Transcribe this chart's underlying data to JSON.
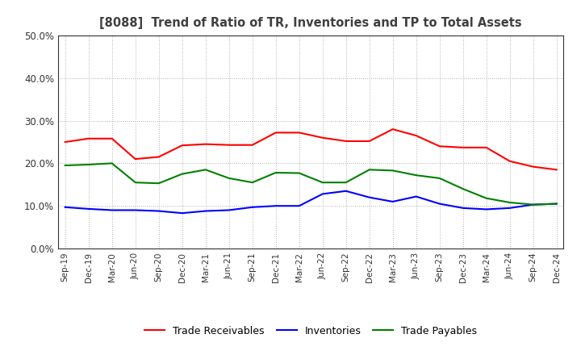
{
  "title": "[8088]  Trend of Ratio of TR, Inventories and TP to Total Assets",
  "x_labels": [
    "Sep-19",
    "Dec-19",
    "Mar-20",
    "Jun-20",
    "Sep-20",
    "Dec-20",
    "Mar-21",
    "Jun-21",
    "Sep-21",
    "Dec-21",
    "Mar-22",
    "Jun-22",
    "Sep-22",
    "Dec-22",
    "Mar-23",
    "Jun-23",
    "Sep-23",
    "Dec-23",
    "Mar-24",
    "Jun-24",
    "Sep-24",
    "Dec-24"
  ],
  "trade_receivables": [
    0.25,
    0.258,
    0.258,
    0.21,
    0.215,
    0.242,
    0.245,
    0.243,
    0.243,
    0.272,
    0.272,
    0.26,
    0.252,
    0.252,
    0.28,
    0.265,
    0.24,
    0.237,
    0.237,
    0.205,
    0.192,
    0.185
  ],
  "inventories": [
    0.097,
    0.093,
    0.09,
    0.09,
    0.088,
    0.083,
    0.088,
    0.09,
    0.097,
    0.1,
    0.1,
    0.128,
    0.135,
    0.12,
    0.11,
    0.122,
    0.105,
    0.095,
    0.092,
    0.095,
    0.103,
    0.105
  ],
  "trade_payables": [
    0.195,
    0.197,
    0.2,
    0.155,
    0.153,
    0.175,
    0.185,
    0.165,
    0.155,
    0.178,
    0.177,
    0.155,
    0.155,
    0.185,
    0.183,
    0.172,
    0.165,
    0.14,
    0.118,
    0.108,
    0.103,
    0.105
  ],
  "tr_color": "#ff0000",
  "inv_color": "#0000ff",
  "tp_color": "#008000",
  "ylim": [
    0.0,
    0.5
  ],
  "yticks": [
    0.0,
    0.1,
    0.2,
    0.3,
    0.4,
    0.5
  ],
  "background_color": "#ffffff",
  "grid_color": "#999999",
  "title_color": "#404040",
  "legend_labels": [
    "Trade Receivables",
    "Inventories",
    "Trade Payables"
  ]
}
